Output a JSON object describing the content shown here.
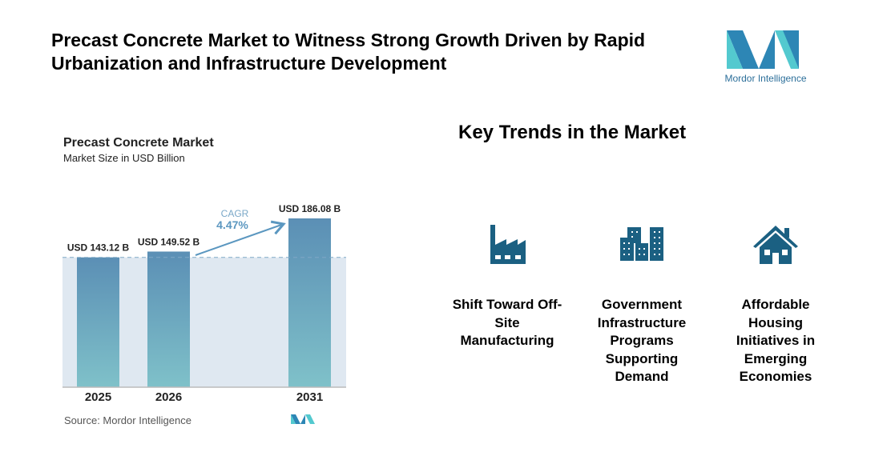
{
  "header": {
    "title": "Precast Concrete Market to Witness Strong Growth Driven by Rapid Urbanization and Infrastructure Development",
    "logo_text": "Mordor Intelligence"
  },
  "chart_data": {
    "type": "bar",
    "title": "Precast Concrete Market",
    "subtitle": "Market Size in USD Billion",
    "categories": [
      "2025",
      "2026",
      "2031"
    ],
    "values": [
      143.12,
      149.52,
      186.08
    ],
    "data_labels": [
      "USD 143.12 B",
      "USD 149.52 B",
      "USD 186.08 B"
    ],
    "cagr_label": "CAGR",
    "cagr_value": "4.47%",
    "ylim": [
      0,
      190
    ],
    "grid": false,
    "colors": {
      "bar_top": "#5b8fb5",
      "bar_bottom": "#7fc1c9",
      "band": "#dfe8f1",
      "accent": "#5b97c0"
    },
    "source": "Source:  Mordor Intelligence"
  },
  "trends": {
    "title": "Key Trends in the Market",
    "icon_color": "#1b6082",
    "items": [
      {
        "icon": "factory-icon",
        "label": "Shift Toward Off-Site Manufacturing"
      },
      {
        "icon": "buildings-icon",
        "label": "Government Infrastructure Programs Supporting Demand"
      },
      {
        "icon": "house-icon",
        "label": "Affordable Housing Initiatives in Emerging Economies"
      }
    ]
  }
}
